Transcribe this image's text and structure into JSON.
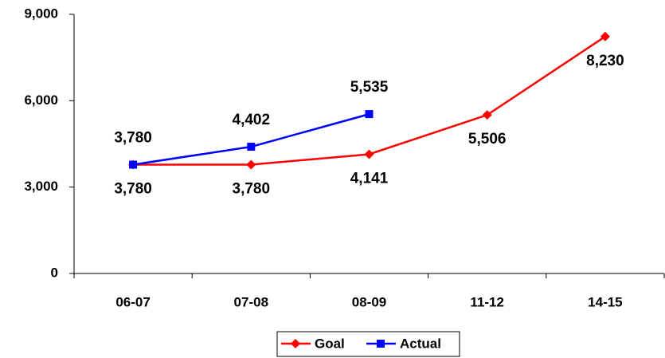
{
  "chart_data": {
    "type": "line",
    "categories": [
      "06-07",
      "07-08",
      "08-09",
      "11-12",
      "14-15"
    ],
    "series": [
      {
        "name": "Goal",
        "color": "#ff0000",
        "marker": "diamond",
        "values": [
          3780,
          3780,
          4141,
          5506,
          8230
        ],
        "value_labels": [
          "3,780",
          "3,780",
          "4,141",
          "5,506",
          "8,230"
        ]
      },
      {
        "name": "Actual",
        "color": "#0000ff",
        "marker": "square",
        "values": [
          3780,
          4402,
          5535,
          null,
          null
        ],
        "value_labels": [
          "3,780",
          "4,402",
          "5,535",
          null,
          null
        ]
      }
    ],
    "ylim": [
      0,
      9000
    ],
    "yticks": [
      0,
      {
        "value": 3000,
        "label": "3,000"
      },
      {
        "value": 6000,
        "label": "6,000"
      },
      {
        "value": 9000,
        "label": "9,000"
      }
    ],
    "legend": "bottom"
  }
}
